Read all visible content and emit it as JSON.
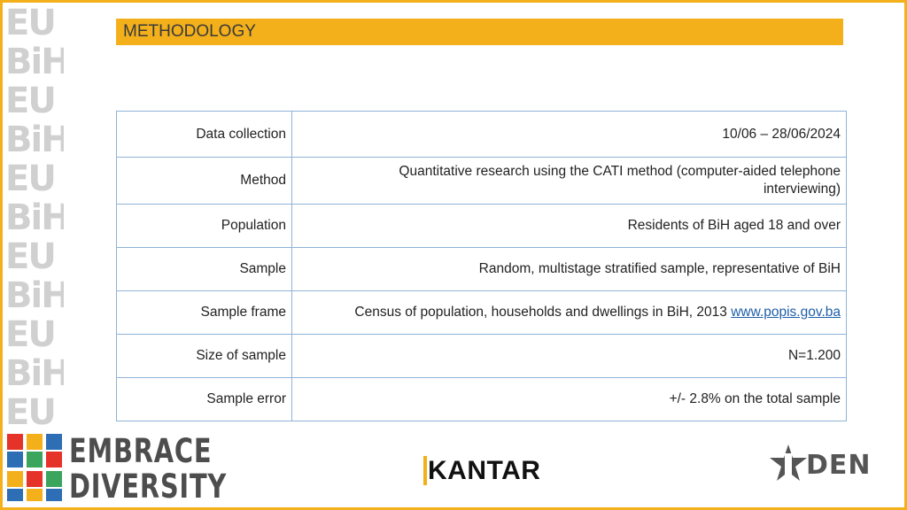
{
  "slide": {
    "title": "METHODOLOGY"
  },
  "table": {
    "rows": [
      {
        "label": "Data collection",
        "value": "10/06 – 28/06/2024"
      },
      {
        "label": "Method",
        "value_line1": "Quantitative research using the CATI method (computer-aided telephone",
        "value_line2": "interviewing)"
      },
      {
        "label": "Population",
        "value": "Residents of BiH aged 18 and over"
      },
      {
        "label": "Sample",
        "value": "Random, multistage stratified sample, representative of BiH"
      },
      {
        "label": "Sample frame",
        "value": "Census of population, households and dwellings in BiH, 2013",
        "link": "www.popis.gov.ba"
      },
      {
        "label": "Size of sample",
        "value": "N=1.200"
      },
      {
        "label": "Sample error",
        "value": "+/- 2.8% on the total sample"
      }
    ]
  },
  "logos": {
    "strip_word_1": "EU",
    "strip_word_2": "BiH",
    "embrace_line1": "EMBRACE",
    "embrace_line2": "DIVERSITY",
    "kantar": "KANTAR",
    "den": "DEN",
    "flag_colors": [
      "#E63329",
      "#F3B01B",
      "#2E6EB5",
      "#3BA55D"
    ],
    "accent": "#F3B01B",
    "border_color": "#8fb4d8"
  }
}
